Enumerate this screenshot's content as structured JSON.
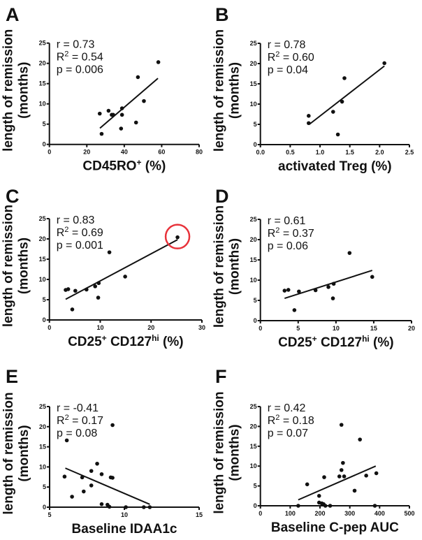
{
  "colors": {
    "ink": "#111111",
    "highlight": "#e8323a"
  },
  "chart_data": [
    {
      "panel": "A",
      "type": "scatter",
      "ylabel": [
        "length of remission",
        "(months)"
      ],
      "xlabel": [
        {
          "t": "CD45RO"
        },
        {
          "t": "+",
          "sup": true
        },
        {
          "t": " (%)"
        }
      ],
      "xlim": [
        0,
        80
      ],
      "xticks": [
        0,
        20,
        40,
        60,
        80
      ],
      "ylim": [
        0,
        25
      ],
      "yticks": [
        0,
        5,
        10,
        15,
        20,
        25
      ],
      "stats": {
        "r": "r = 0.73",
        "r2_label": "R",
        "r2_sup": "2",
        "r2": " = 0.54",
        "p": "p = 0.006"
      },
      "x": [
        58.2,
        47.3,
        50.5,
        46.3,
        38.8,
        38.8,
        38.3,
        31.6,
        33.3,
        34.1,
        26.9,
        27.9
      ],
      "y": [
        20.3,
        16.6,
        10.7,
        5.4,
        8.9,
        7.3,
        3.9,
        8.3,
        7.3,
        7.3,
        7.6,
        2.6
      ],
      "fit": [
        [
          27,
          4.0
        ],
        [
          58,
          16.3
        ]
      ]
    },
    {
      "panel": "B",
      "type": "scatter",
      "ylabel": [
        "length of remission",
        "(months)"
      ],
      "xlabel": [
        {
          "t": "activated Treg (%)"
        }
      ],
      "xlim": [
        0,
        2.5
      ],
      "xticks": [
        "0.0",
        "0.5",
        "1.0",
        "1.5",
        "2.0",
        "2.5"
      ],
      "ylim": [
        0,
        25
      ],
      "yticks": [
        0,
        5,
        10,
        15,
        20,
        25
      ],
      "stats": {
        "r": "r = 0.78",
        "r2_label": "R",
        "r2_sup": "2",
        "r2": " = 0.60",
        "p": "p = 0.04"
      },
      "x": [
        2.08,
        1.41,
        1.37,
        1.22,
        0.81,
        0.81,
        1.3
      ],
      "y": [
        20.1,
        16.4,
        10.6,
        8.1,
        7.1,
        5.3,
        2.5
      ],
      "fit": [
        [
          0.82,
          5.0
        ],
        [
          2.08,
          19.4
        ]
      ]
    },
    {
      "panel": "C",
      "type": "scatter",
      "ylabel": [
        "length of remission",
        "(months)"
      ],
      "xlabel": [
        {
          "t": "CD25"
        },
        {
          "t": "+",
          "sup": true
        },
        {
          "t": " CD127"
        },
        {
          "t": "hi",
          "sup": true
        },
        {
          "t": " (%)"
        }
      ],
      "xlim": [
        0,
        30
      ],
      "xticks": [
        0,
        10,
        20,
        30
      ],
      "ylim": [
        0,
        25
      ],
      "yticks": [
        0,
        5,
        10,
        15,
        20,
        25
      ],
      "stats": {
        "r": "r = 0.83",
        "r2_label": "R",
        "r2_sup": "2",
        "r2": " = 0.69",
        "p": "p = 0.001"
      },
      "x": [
        25.2,
        11.8,
        14.9,
        9.7,
        9.0,
        7.3,
        5.1,
        3.7,
        3.2,
        9.6,
        4.5
      ],
      "y": [
        20.4,
        16.7,
        10.7,
        9.1,
        8.3,
        7.5,
        7.2,
        7.6,
        7.4,
        5.5,
        2.6
      ],
      "fit": [
        [
          3.2,
          5.1
        ],
        [
          25.2,
          19.8
        ]
      ],
      "highlight": [
        25.2,
        20.4
      ]
    },
    {
      "panel": "D",
      "type": "scatter",
      "ylabel": [
        "length of remission",
        "(months)"
      ],
      "xlabel": [
        {
          "t": "CD25"
        },
        {
          "t": "+",
          "sup": true
        },
        {
          "t": " CD127"
        },
        {
          "t": "hi",
          "sup": true
        },
        {
          "t": " (%)"
        }
      ],
      "xlim": [
        0,
        20
      ],
      "xticks": [
        0,
        5,
        10,
        15,
        20
      ],
      "ylim": [
        0,
        25
      ],
      "yticks": [
        0,
        5,
        10,
        15,
        20,
        25
      ],
      "stats": {
        "r": "r = 0.61",
        "r2_label": "R",
        "r2_sup": "2",
        "r2": " = 0.37",
        "p": "p = 0.06"
      },
      "x": [
        11.8,
        14.8,
        9.7,
        9.0,
        7.3,
        5.1,
        3.7,
        3.2,
        9.6,
        4.5
      ],
      "y": [
        16.7,
        10.8,
        9.1,
        8.3,
        7.5,
        7.2,
        7.6,
        7.4,
        5.5,
        2.6
      ],
      "fit": [
        [
          3.2,
          5.5
        ],
        [
          14.8,
          12.4
        ]
      ]
    },
    {
      "panel": "E",
      "type": "scatter",
      "ylabel": [
        "length of remission",
        "(months)"
      ],
      "xlabel": [
        {
          "t": "Baseline IDAA1c"
        }
      ],
      "xlim": [
        5,
        15
      ],
      "xticks": [
        5,
        10,
        15
      ],
      "ylim": [
        0,
        25
      ],
      "yticks": [
        0,
        5,
        10,
        15,
        20,
        25
      ],
      "stats": {
        "r": "r = -0.41",
        "r2_label": "R",
        "r2_sup": "2",
        "r2": " = 0.17",
        "p": "p = 0.08"
      },
      "x": [
        6.15,
        9.21,
        8.18,
        7.79,
        8.48,
        9.09,
        9.21,
        7.18,
        6.0,
        7.79,
        7.28,
        6.5,
        8.48,
        8.87,
        9.0,
        10.1,
        11.3,
        11.7
      ],
      "y": [
        16.6,
        20.4,
        10.8,
        9.0,
        8.2,
        7.4,
        7.3,
        7.4,
        7.6,
        5.4,
        3.9,
        2.6,
        0.75,
        0.6,
        0.1,
        0,
        0,
        0
      ],
      "fit": [
        [
          6.05,
          9.7
        ],
        [
          11.7,
          0.7
        ]
      ]
    },
    {
      "panel": "F",
      "type": "scatter",
      "ylabel": [
        "length of remission",
        "(months)"
      ],
      "xlabel": [
        {
          "t": "Baseline C-pep AUC"
        }
      ],
      "xlim": [
        0,
        500
      ],
      "xticks": [
        0,
        100,
        200,
        300,
        400,
        500
      ],
      "ylim": [
        0,
        25
      ],
      "yticks": [
        0,
        5,
        10,
        15,
        20,
        25
      ],
      "stats": {
        "r": "r = 0.42",
        "r2_label": "R",
        "r2_sup": "2",
        "r2": " = 0.18",
        "p": "p = 0.07"
      },
      "x": [
        272,
        334,
        277,
        272,
        389,
        355,
        265,
        281,
        214,
        157,
        316,
        197,
        197,
        206,
        212,
        218,
        234,
        127,
        384
      ],
      "y": [
        20.4,
        16.7,
        10.8,
        9.0,
        8.2,
        7.6,
        7.4,
        7.4,
        7.2,
        5.4,
        3.8,
        2.5,
        0.8,
        0.6,
        0.4,
        0,
        0,
        0,
        0
      ],
      "fit": [
        [
          127,
          1.5
        ],
        [
          387,
          10.0
        ]
      ]
    }
  ]
}
